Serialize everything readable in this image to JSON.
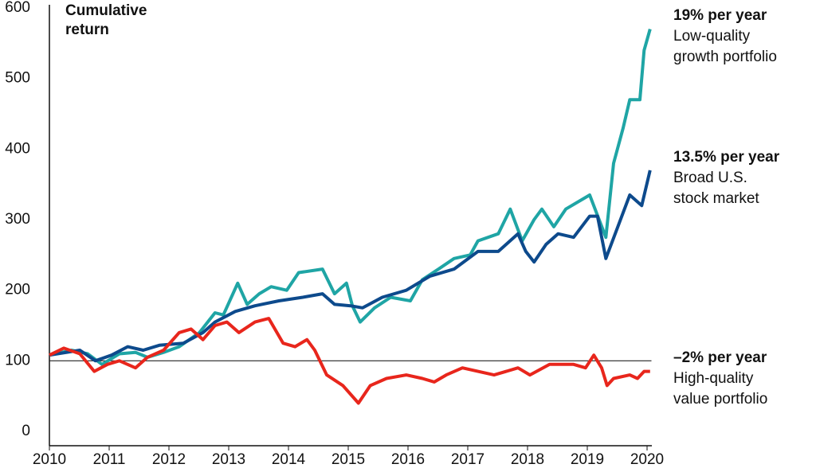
{
  "chart_data": {
    "type": "line",
    "y_label": [
      "Cumulative",
      "return"
    ],
    "xlim": [
      2010,
      2020.1
    ],
    "xticks": [
      2010,
      2011,
      2012,
      2013,
      2014,
      2015,
      2016,
      2017,
      2018,
      2019,
      2020
    ],
    "ylim": [
      0,
      600
    ],
    "yticks": [
      0,
      100,
      200,
      300,
      400,
      500,
      600
    ],
    "reference_line": 100,
    "series": [
      {
        "rate": "19% per year",
        "label": [
          "Low-quality",
          "growth portfolio"
        ],
        "color": "#1fa5a5",
        "x": [
          2010,
          2010.37,
          2010.64,
          2010.88,
          2011.17,
          2011.44,
          2011.64,
          2011.91,
          2012.17,
          2012.51,
          2012.77,
          2012.91,
          2013.15,
          2013.31,
          2013.51,
          2013.71,
          2013.97,
          2014.17,
          2014.57,
          2014.77,
          2014.97,
          2015.07,
          2015.2,
          2015.44,
          2015.71,
          2016.04,
          2016.24,
          2016.51,
          2016.77,
          2017.04,
          2017.17,
          2017.51,
          2017.71,
          2017.91,
          2018.11,
          2018.24,
          2018.44,
          2018.64,
          2019.04,
          2019.31,
          2019.44,
          2019.6,
          2019.71,
          2019.88,
          2019.95,
          2020.05
        ],
        "values": [
          108,
          115,
          110,
          95,
          110,
          112,
          105,
          112,
          120,
          140,
          168,
          165,
          210,
          180,
          195,
          205,
          200,
          225,
          230,
          195,
          210,
          178,
          155,
          175,
          190,
          185,
          215,
          230,
          245,
          250,
          270,
          280,
          315,
          270,
          300,
          315,
          290,
          315,
          335,
          275,
          380,
          430,
          470,
          470,
          540,
          570
        ]
      },
      {
        "rate": "13.5% per year",
        "label": [
          "Broad U.S.",
          "stock market"
        ],
        "color": "#0d4a8c",
        "x": [
          2010,
          2010.51,
          2010.77,
          2011.04,
          2011.31,
          2011.57,
          2011.84,
          2012.24,
          2012.57,
          2012.77,
          2013.11,
          2013.44,
          2013.84,
          2014.24,
          2014.57,
          2014.77,
          2015.04,
          2015.24,
          2015.57,
          2015.97,
          2016.37,
          2016.77,
          2017.17,
          2017.51,
          2017.84,
          2017.97,
          2018.11,
          2018.31,
          2018.51,
          2018.77,
          2019.04,
          2019.17,
          2019.31,
          2019.51,
          2019.71,
          2019.91,
          2020.05
        ],
        "values": [
          108,
          115,
          100,
          108,
          120,
          115,
          122,
          125,
          140,
          155,
          170,
          178,
          185,
          190,
          195,
          180,
          178,
          175,
          190,
          200,
          220,
          230,
          255,
          255,
          280,
          255,
          240,
          265,
          280,
          275,
          305,
          305,
          245,
          290,
          335,
          320,
          370
        ]
      },
      {
        "rate": "–2% per year",
        "label": [
          "High-quality",
          "value portfolio"
        ],
        "color": "#e8261c",
        "x": [
          2010,
          2010.24,
          2010.51,
          2010.75,
          2010.97,
          2011.17,
          2011.44,
          2011.64,
          2011.91,
          2012.17,
          2012.37,
          2012.57,
          2012.77,
          2012.97,
          2013.17,
          2013.44,
          2013.67,
          2013.91,
          2014.11,
          2014.31,
          2014.44,
          2014.64,
          2014.91,
          2015.17,
          2015.37,
          2015.64,
          2015.97,
          2016.24,
          2016.44,
          2016.64,
          2016.91,
          2017.17,
          2017.44,
          2017.84,
          2018.04,
          2018.37,
          2018.77,
          2018.97,
          2019.11,
          2019.24,
          2019.33,
          2019.44,
          2019.71,
          2019.84,
          2019.95,
          2020.05
        ],
        "values": [
          108,
          118,
          110,
          85,
          95,
          100,
          90,
          105,
          115,
          140,
          145,
          130,
          150,
          155,
          140,
          155,
          160,
          125,
          120,
          130,
          115,
          80,
          65,
          40,
          65,
          75,
          80,
          75,
          70,
          80,
          90,
          85,
          80,
          90,
          80,
          95,
          95,
          90,
          108,
          90,
          65,
          75,
          80,
          75,
          85,
          85
        ]
      }
    ]
  }
}
